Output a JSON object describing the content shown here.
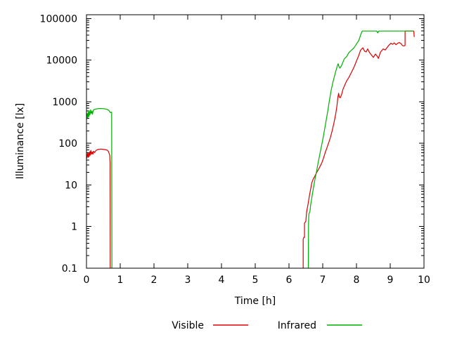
{
  "chart_data": {
    "type": "line",
    "title": "",
    "xlabel": "Time [h]",
    "ylabel": "Illuminance [lx]",
    "grid": false,
    "legend_position": "bottom-center",
    "x_axis": {
      "min": 0,
      "max": 10,
      "ticks": [
        0,
        1,
        2,
        3,
        4,
        5,
        6,
        7,
        8,
        9,
        10
      ]
    },
    "y_axis": {
      "scale": "log",
      "min": 0.1,
      "max": 100000,
      "tick_values": [
        0.1,
        1,
        10,
        100,
        1000,
        10000,
        100000
      ],
      "tick_labels": [
        "0.1",
        "1",
        "10",
        "100",
        "1000",
        "10000",
        "100000"
      ]
    },
    "series": [
      {
        "name": "Visible",
        "color": "#dd0000",
        "segments": [
          [
            [
              0.0,
              52
            ],
            [
              0.01,
              44
            ],
            [
              0.03,
              57
            ],
            [
              0.05,
              46
            ],
            [
              0.06,
              60
            ],
            [
              0.08,
              48
            ],
            [
              0.1,
              63
            ],
            [
              0.11,
              52
            ],
            [
              0.13,
              68
            ],
            [
              0.15,
              55
            ],
            [
              0.17,
              62
            ],
            [
              0.19,
              55
            ],
            [
              0.21,
              65
            ],
            [
              0.24,
              60
            ],
            [
              0.27,
              66
            ],
            [
              0.3,
              69
            ],
            [
              0.34,
              71
            ],
            [
              0.38,
              72
            ],
            [
              0.43,
              73
            ],
            [
              0.48,
              72
            ],
            [
              0.53,
              71
            ],
            [
              0.58,
              70
            ],
            [
              0.62,
              68
            ],
            [
              0.65,
              64
            ],
            [
              0.67,
              57
            ],
            [
              0.69,
              52
            ],
            [
              0.695,
              38
            ],
            [
              0.7,
              36
            ],
            [
              0.705,
              0.05
            ]
          ],
          [
            [
              6.42,
              0.05
            ],
            [
              6.42,
              0.5
            ],
            [
              6.44,
              0.55
            ],
            [
              6.46,
              0.55
            ],
            [
              6.46,
              1.2
            ],
            [
              6.5,
              1.35
            ],
            [
              6.52,
              2.2
            ],
            [
              6.56,
              3.3
            ],
            [
              6.6,
              5.2
            ],
            [
              6.64,
              7.8
            ],
            [
              6.68,
              11.5
            ],
            [
              6.72,
              14
            ],
            [
              6.76,
              16
            ],
            [
              6.82,
              20
            ],
            [
              6.88,
              24
            ],
            [
              6.94,
              30
            ],
            [
              6.98,
              35
            ],
            [
              7.03,
              46
            ],
            [
              7.08,
              62
            ],
            [
              7.13,
              80
            ],
            [
              7.18,
              105
            ],
            [
              7.23,
              140
            ],
            [
              7.28,
              200
            ],
            [
              7.33,
              300
            ],
            [
              7.38,
              480
            ],
            [
              7.42,
              800
            ],
            [
              7.45,
              1300
            ],
            [
              7.47,
              1600
            ],
            [
              7.49,
              1300
            ],
            [
              7.52,
              1250
            ],
            [
              7.56,
              1500
            ],
            [
              7.6,
              2000
            ],
            [
              7.66,
              2600
            ],
            [
              7.71,
              3200
            ],
            [
              7.78,
              3900
            ],
            [
              7.85,
              5100
            ],
            [
              7.92,
              6600
            ],
            [
              7.99,
              9100
            ],
            [
              8.06,
              12500
            ],
            [
              8.12,
              17300
            ],
            [
              8.19,
              19800
            ],
            [
              8.24,
              16500
            ],
            [
              8.29,
              15800
            ],
            [
              8.33,
              18600
            ],
            [
              8.38,
              15500
            ],
            [
              8.44,
              13400
            ],
            [
              8.5,
              11600
            ],
            [
              8.56,
              14000
            ],
            [
              8.61,
              12500
            ],
            [
              8.65,
              11000
            ],
            [
              8.71,
              15600
            ],
            [
              8.79,
              18600
            ],
            [
              8.85,
              17500
            ],
            [
              8.9,
              19800
            ],
            [
              8.96,
              22800
            ],
            [
              9.02,
              25500
            ],
            [
              9.07,
              24000
            ],
            [
              9.12,
              26000
            ],
            [
              9.17,
              23500
            ],
            [
              9.22,
              25500
            ],
            [
              9.27,
              26500
            ],
            [
              9.32,
              25000
            ],
            [
              9.36,
              22500
            ],
            [
              9.4,
              22000
            ],
            [
              9.44,
              22500
            ],
            [
              9.44,
              50000
            ],
            [
              9.68,
              50000
            ],
            [
              9.7,
              49500
            ],
            [
              9.71,
              36000
            ]
          ]
        ]
      },
      {
        "name": "Infrared",
        "color": "#00b000",
        "segments": [
          [
            [
              0.0,
              430
            ],
            [
              0.01,
              380
            ],
            [
              0.02,
              520
            ],
            [
              0.04,
              420
            ],
            [
              0.05,
              560
            ],
            [
              0.07,
              440
            ],
            [
              0.08,
              610
            ],
            [
              0.1,
              480
            ],
            [
              0.12,
              640
            ],
            [
              0.14,
              520
            ],
            [
              0.16,
              600
            ],
            [
              0.18,
              500
            ],
            [
              0.2,
              620
            ],
            [
              0.23,
              650
            ],
            [
              0.27,
              665
            ],
            [
              0.31,
              675
            ],
            [
              0.36,
              685
            ],
            [
              0.41,
              690
            ],
            [
              0.46,
              685
            ],
            [
              0.51,
              678
            ],
            [
              0.56,
              670
            ],
            [
              0.61,
              655
            ],
            [
              0.65,
              630
            ],
            [
              0.68,
              590
            ],
            [
              0.71,
              545
            ],
            [
              0.73,
              560
            ],
            [
              0.745,
              555
            ],
            [
              0.755,
              0.05
            ]
          ],
          [
            [
              6.57,
              0.05
            ],
            [
              6.58,
              1.2
            ],
            [
              6.59,
              2.0
            ],
            [
              6.62,
              2.3
            ],
            [
              6.64,
              3.2
            ],
            [
              6.67,
              4.6
            ],
            [
              6.7,
              6.5
            ],
            [
              6.74,
              10
            ],
            [
              6.78,
              15
            ],
            [
              6.82,
              22
            ],
            [
              6.86,
              33
            ],
            [
              6.9,
              48
            ],
            [
              6.94,
              70
            ],
            [
              6.98,
              100
            ],
            [
              7.02,
              150
            ],
            [
              7.06,
              230
            ],
            [
              7.1,
              350
            ],
            [
              7.15,
              600
            ],
            [
              7.2,
              1100
            ],
            [
              7.25,
              1900
            ],
            [
              7.3,
              2900
            ],
            [
              7.35,
              4200
            ],
            [
              7.4,
              5900
            ],
            [
              7.44,
              7600
            ],
            [
              7.46,
              8200
            ],
            [
              7.48,
              7000
            ],
            [
              7.51,
              6400
            ],
            [
              7.55,
              7200
            ],
            [
              7.6,
              9000
            ],
            [
              7.64,
              10800
            ],
            [
              7.68,
              11500
            ],
            [
              7.72,
              12600
            ],
            [
              7.77,
              15000
            ],
            [
              7.82,
              16500
            ],
            [
              7.87,
              18000
            ],
            [
              7.92,
              19600
            ],
            [
              7.97,
              22500
            ],
            [
              8.02,
              26000
            ],
            [
              8.06,
              28800
            ],
            [
              8.09,
              33000
            ],
            [
              8.12,
              40000
            ],
            [
              8.15,
              46000
            ],
            [
              8.17,
              50000
            ],
            [
              8.6,
              50000
            ],
            [
              8.63,
              45000
            ],
            [
              8.66,
              50000
            ],
            [
              9.7,
              50000
            ]
          ]
        ]
      }
    ]
  }
}
